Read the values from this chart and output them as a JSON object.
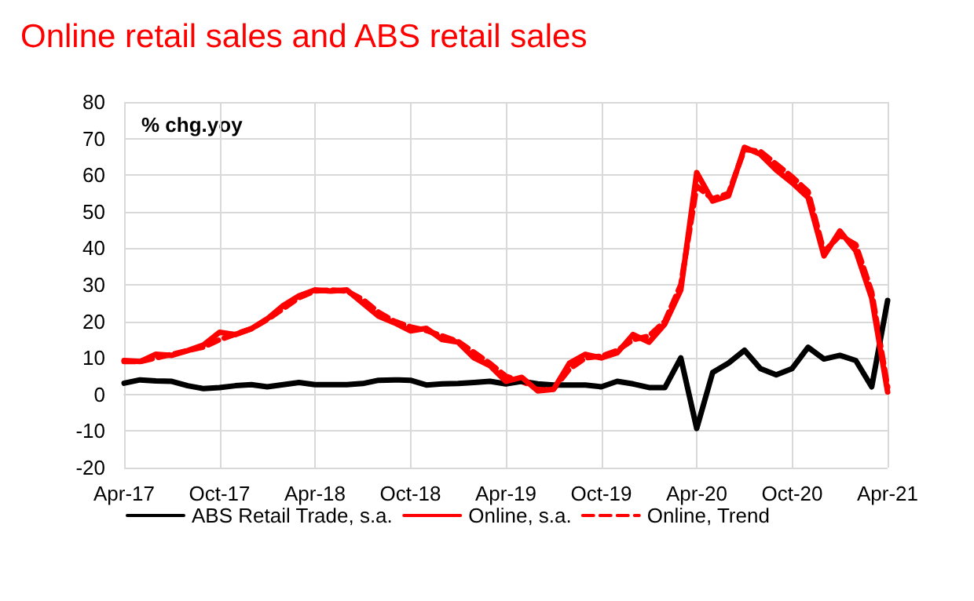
{
  "chart_data": {
    "type": "line",
    "title": "Online retail sales and ABS retail sales",
    "ylabel": "% chg.yoy",
    "categories": [
      "Apr-17",
      null,
      null,
      null,
      null,
      null,
      "Oct-17",
      null,
      null,
      null,
      null,
      null,
      "Apr-18",
      null,
      null,
      null,
      null,
      null,
      "Oct-18",
      null,
      null,
      null,
      null,
      null,
      "Apr-19",
      null,
      null,
      null,
      null,
      null,
      "Oct-19",
      null,
      null,
      null,
      null,
      null,
      "Apr-20",
      null,
      null,
      null,
      null,
      null,
      "Oct-20",
      null,
      null,
      null,
      null,
      null,
      "Apr-21"
    ],
    "series": [
      {
        "name": "ABS Retail Trade, s.a.",
        "color": "#000000",
        "line_style": "solid",
        "values": [
          3.1,
          4,
          3.7,
          3.6,
          2.4,
          1.6,
          1.9,
          2.4,
          2.7,
          2.1,
          2.7,
          3.3,
          2.7,
          2.7,
          2.7,
          3,
          3.9,
          4,
          3.9,
          2.6,
          2.9,
          3,
          3.3,
          3.6,
          2.9,
          3.6,
          2.9,
          2.6,
          2.6,
          2.6,
          2.1,
          3.6,
          2.9,
          1.9,
          1.9,
          10,
          -9.3,
          6,
          8.6,
          12.1,
          7.1,
          5.4,
          7.1,
          12.9,
          9.7,
          10.7,
          9.3,
          2.1,
          25.7
        ]
      },
      {
        "name": "Online, s.a.",
        "color": "#ff0000",
        "line_style": "solid",
        "values": [
          9.3,
          9,
          11,
          10.7,
          12,
          13.6,
          17,
          16.4,
          18,
          20.7,
          24.3,
          27,
          28.6,
          28.3,
          28.6,
          25,
          21.4,
          19.6,
          17.4,
          18.1,
          15,
          14.3,
          10,
          7.9,
          3.6,
          4.7,
          1,
          1.4,
          8.6,
          11,
          10,
          11.4,
          16.4,
          14.3,
          19.3,
          28.6,
          60.7,
          52.9,
          54.3,
          67.6,
          65.7,
          61.4,
          57.9,
          53.9,
          37.9,
          44.7,
          39.3,
          26.4,
          0.7
        ]
      },
      {
        "name": "Online, Trend",
        "color": "#ff0000",
        "line_style": "dashed",
        "values": [
          9,
          9,
          10,
          11,
          12,
          13,
          15,
          16.5,
          18,
          20.5,
          23.5,
          26.5,
          28.3,
          28.6,
          28.3,
          26,
          22.5,
          20,
          18.5,
          17.5,
          16,
          14.5,
          11.5,
          8.5,
          5,
          3.5,
          2,
          1.5,
          7,
          10,
          10.5,
          12,
          15,
          16,
          20,
          30,
          57,
          53.5,
          55,
          67,
          66.5,
          63,
          59.5,
          55.5,
          39,
          43.5,
          41,
          28,
          2
        ]
      }
    ],
    "ylim": [
      -20,
      80
    ],
    "yticks": [
      -20,
      -10,
      0,
      10,
      20,
      30,
      40,
      50,
      60,
      70,
      80
    ],
    "grid": true,
    "legend": "bottom",
    "marker": "none"
  }
}
